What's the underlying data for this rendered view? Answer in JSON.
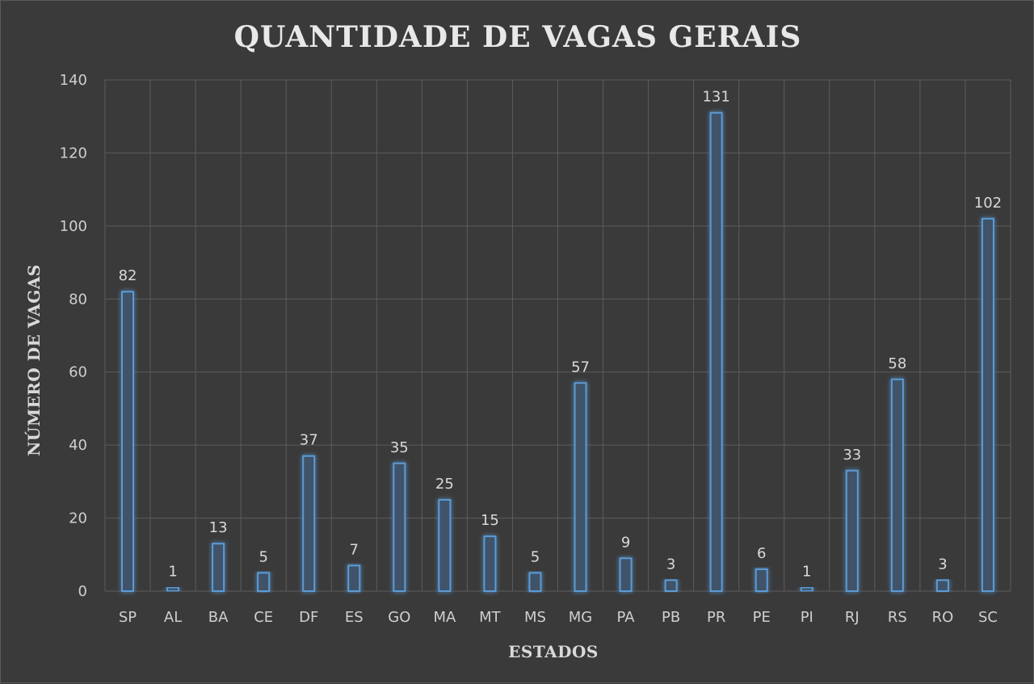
{
  "chart_data": {
    "type": "bar",
    "title": "QUANTIDADE DE VAGAS GERAIS",
    "xlabel": "ESTADOS",
    "ylabel": "NÚMERO DE VAGAS",
    "categories": [
      "SP",
      "AL",
      "BA",
      "CE",
      "DF",
      "ES",
      "GO",
      "MA",
      "MT",
      "MS",
      "MG",
      "PA",
      "PB",
      "PR",
      "PE",
      "PI",
      "RJ",
      "RS",
      "RO",
      "SC"
    ],
    "values": [
      82,
      1,
      13,
      5,
      37,
      7,
      35,
      25,
      15,
      5,
      57,
      9,
      3,
      131,
      6,
      1,
      33,
      58,
      3,
      102
    ],
    "ylim": [
      0,
      140
    ],
    "yticks": [
      0,
      20,
      40,
      60,
      80,
      100,
      120,
      140
    ],
    "grid": true,
    "legend": "none",
    "colors": {
      "background": "#3a3a3a",
      "bar_fill": "#3f5269",
      "bar_stroke": "#5b9bd5",
      "grid": "#5c5c5c",
      "text": "#d9d9d9"
    }
  }
}
